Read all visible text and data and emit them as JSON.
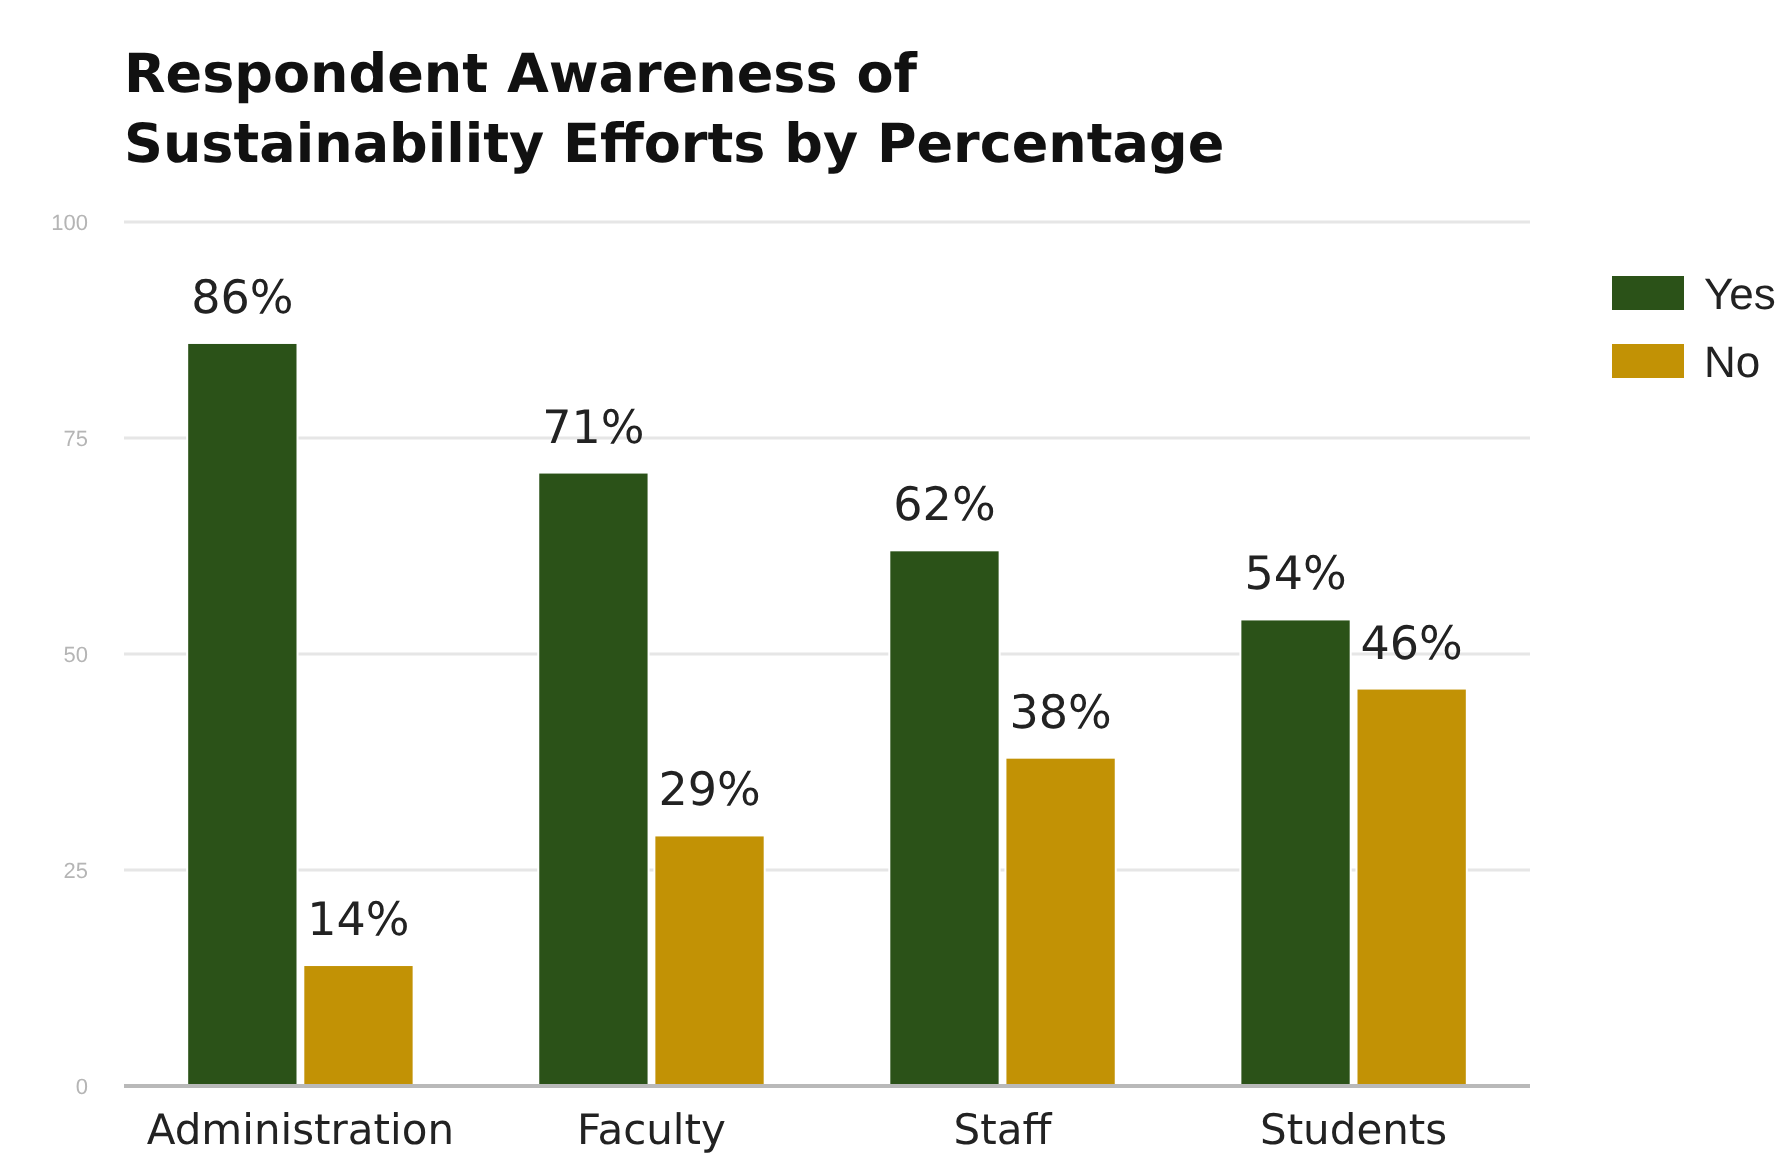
{
  "chart_data": {
    "type": "bar",
    "title": "Respondent Awareness of\nSustainability Efforts by Percentage",
    "categories": [
      "Administration",
      "Faculty",
      "Staff",
      "Students"
    ],
    "series": [
      {
        "name": "Yes",
        "color": "#2b5218",
        "values": [
          86,
          71,
          62,
          54
        ],
        "value_labels": [
          "86%",
          "71%",
          "62%",
          "54%"
        ]
      },
      {
        "name": "No",
        "color": "#c29205",
        "values": [
          14,
          29,
          38,
          46
        ],
        "value_labels": [
          "14%",
          "29%",
          "38%",
          "46%"
        ]
      }
    ],
    "ylim": [
      0,
      100
    ],
    "yticks": [
      0,
      25,
      50,
      75,
      100
    ],
    "grid": "y",
    "legend": "top right"
  }
}
